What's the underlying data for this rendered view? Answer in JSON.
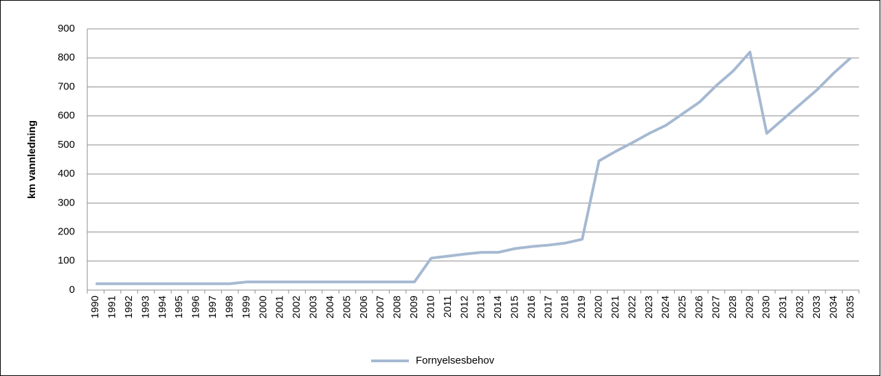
{
  "chart_data": {
    "type": "line",
    "y_label": "km vannledning",
    "categories": [
      "1990",
      "1991",
      "1992",
      "1993",
      "1994",
      "1995",
      "1996",
      "1997",
      "1998",
      "1999",
      "2000",
      "2001",
      "2002",
      "2003",
      "2004",
      "2005",
      "2006",
      "2007",
      "2008",
      "2009",
      "2010",
      "2011",
      "2012",
      "2013",
      "2014",
      "2015",
      "2016",
      "2017",
      "2018",
      "2019",
      "2020",
      "2021",
      "2022",
      "2023",
      "2024",
      "2025",
      "2026",
      "2027",
      "2028",
      "2029",
      "2030",
      "2031",
      "2032",
      "2033",
      "2034",
      "2035"
    ],
    "series": [
      {
        "name": "Fornyelsesbehov",
        "color": "#a6b9d2",
        "values": [
          22,
          22,
          22,
          22,
          22,
          22,
          22,
          22,
          22,
          28,
          28,
          28,
          28,
          28,
          28,
          28,
          28,
          28,
          28,
          28,
          110,
          117,
          124,
          130,
          130,
          143,
          150,
          155,
          162,
          175,
          445,
          478,
          508,
          540,
          568,
          608,
          648,
          705,
          755,
          820,
          540,
          590,
          640,
          690,
          748,
          800
        ]
      }
    ],
    "ylim": [
      0,
      900
    ],
    "yticks": [
      0,
      100,
      200,
      300,
      400,
      500,
      600,
      700,
      800,
      900
    ],
    "grid": true,
    "legend": "bottom"
  }
}
